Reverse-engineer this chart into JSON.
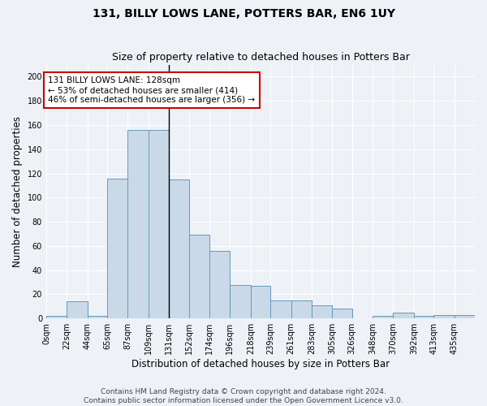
{
  "title": "131, BILLY LOWS LANE, POTTERS BAR, EN6 1UY",
  "subtitle": "Size of property relative to detached houses in Potters Bar",
  "xlabel": "Distribution of detached houses by size in Potters Bar",
  "ylabel": "Number of detached properties",
  "bar_values": [
    2,
    14,
    2,
    116,
    156,
    156,
    115,
    69,
    56,
    28,
    27,
    15,
    15,
    11,
    8,
    0,
    2,
    5,
    2,
    3,
    3
  ],
  "bin_edges": [
    0,
    22,
    44,
    65,
    87,
    109,
    131,
    152,
    174,
    196,
    218,
    239,
    261,
    283,
    305,
    326,
    348,
    370,
    392,
    413,
    435,
    457
  ],
  "tick_labels": [
    "0sqm",
    "22sqm",
    "44sqm",
    "65sqm",
    "87sqm",
    "109sqm",
    "131sqm",
    "152sqm",
    "174sqm",
    "196sqm",
    "218sqm",
    "239sqm",
    "261sqm",
    "283sqm",
    "305sqm",
    "326sqm",
    "348sqm",
    "370sqm",
    "392sqm",
    "413sqm",
    "435sqm"
  ],
  "bar_color": "#c9d9e8",
  "bar_edge_color": "#6699bb",
  "annotation_text": "131 BILLY LOWS LANE: 128sqm\n← 53% of detached houses are smaller (414)\n46% of semi-detached houses are larger (356) →",
  "annotation_box_color": "#ffffff",
  "annotation_box_edge": "#cc0000",
  "vline_color": "#000000",
  "ylim": [
    0,
    210
  ],
  "yticks": [
    0,
    20,
    40,
    60,
    80,
    100,
    120,
    140,
    160,
    180,
    200
  ],
  "background_color": "#eef2f7",
  "grid_color": "#ffffff",
  "footer_line1": "Contains HM Land Registry data © Crown copyright and database right 2024.",
  "footer_line2": "Contains public sector information licensed under the Open Government Licence v3.0.",
  "title_fontsize": 10,
  "subtitle_fontsize": 9,
  "xlabel_fontsize": 8.5,
  "ylabel_fontsize": 8.5,
  "tick_fontsize": 7,
  "annotation_fontsize": 7.5,
  "footer_fontsize": 6.5
}
